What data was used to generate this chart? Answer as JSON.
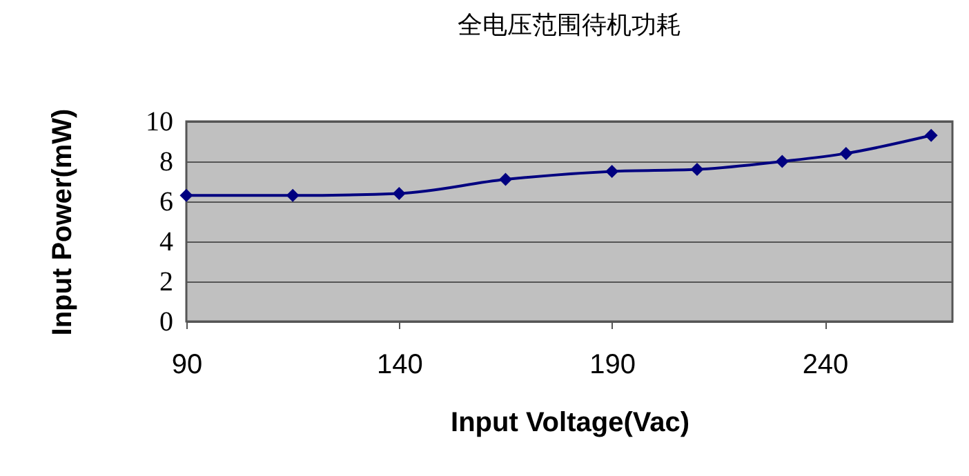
{
  "chart_data": {
    "type": "line",
    "title": "全电压范围待机功耗",
    "xlabel": "Input Voltage(Vac)",
    "ylabel": "Input Power(mW)",
    "x": [
      90,
      115,
      140,
      165,
      190,
      210,
      230,
      245,
      265
    ],
    "series": [
      {
        "color": "#000080",
        "values": [
          6.3,
          6.3,
          6.4,
          7.1,
          7.5,
          7.6,
          8.0,
          8.4,
          9.3
        ]
      }
    ],
    "xlim": [
      90,
      270
    ],
    "xticks": [
      90,
      140,
      190,
      240
    ],
    "ylim": [
      0,
      10
    ],
    "yticks": [
      0,
      2,
      4,
      6,
      8,
      10
    ],
    "grid": "y",
    "marker": "diamond",
    "line_style": "solid",
    "legend": false
  }
}
